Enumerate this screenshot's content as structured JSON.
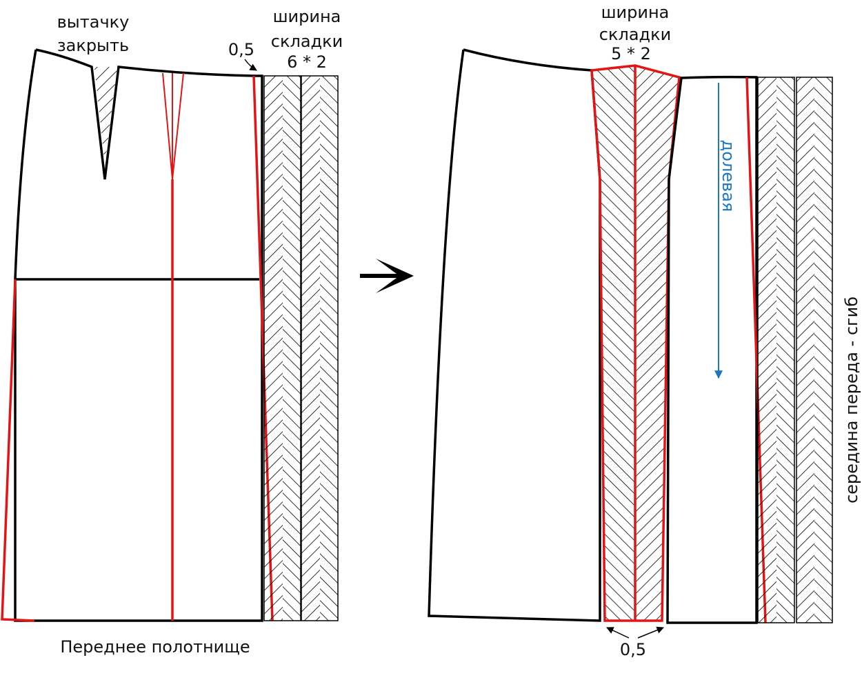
{
  "left_panel": {
    "dart_label": [
      "вытачку",
      "закрыть"
    ],
    "offset_label": "0,5",
    "pleat_label": [
      "ширина",
      "складки",
      "6 * 2"
    ],
    "caption": "Переднее полотнище"
  },
  "right_panel": {
    "pleat_label": [
      "ширина",
      "складки",
      "5 * 2"
    ],
    "grain_label": "долевая",
    "offset_label": "0,5",
    "fold_label": "середина переда - сгиб"
  }
}
